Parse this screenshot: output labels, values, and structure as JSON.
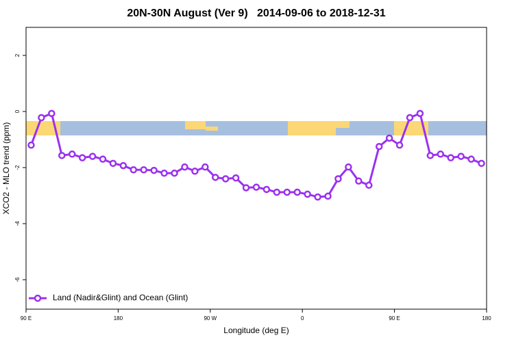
{
  "chart_data": {
    "type": "line",
    "title": "20N-30N August (Ver 9)   2014-09-06 to 2018-12-31",
    "x_label": "Longitude (deg E)",
    "y_label": "XCO2 - MLO trend (ppm)",
    "xlim": [
      90,
      540
    ],
    "ylim": [
      -7.05,
      3.0
    ],
    "xticks": [
      {
        "value": 90,
        "label": "90 E"
      },
      {
        "value": 180,
        "label": "180"
      },
      {
        "value": 270,
        "label": "90 W"
      },
      {
        "value": 360,
        "label": "0"
      },
      {
        "value": 450,
        "label": "90 E"
      },
      {
        "value": 540,
        "label": "180"
      }
    ],
    "yticks": [
      -6,
      -4,
      -2,
      0,
      2
    ],
    "legend": "bottom-left",
    "series": [
      {
        "name": "Land (Nadir&Glint) and Ocean (Glint)",
        "color": "#9b30f0",
        "x": [
          95,
          105,
          115,
          125,
          135,
          145,
          155,
          165,
          175,
          185,
          195,
          205,
          215,
          225,
          235,
          245,
          255,
          265,
          275,
          285,
          295,
          305,
          315,
          325,
          335,
          345,
          355,
          365,
          375,
          385,
          395,
          405,
          415,
          425,
          435,
          445,
          455,
          465,
          475,
          485,
          495,
          505,
          515,
          525,
          535
        ],
        "values": [
          -1.2,
          -0.22,
          -0.07,
          -1.57,
          -1.52,
          -1.65,
          -1.6,
          -1.7,
          -1.85,
          -1.93,
          -2.08,
          -2.08,
          -2.1,
          -2.2,
          -2.2,
          -1.98,
          -2.13,
          -1.98,
          -2.35,
          -2.4,
          -2.37,
          -2.72,
          -2.7,
          -2.78,
          -2.88,
          -2.88,
          -2.88,
          -2.95,
          -3.05,
          -3.02,
          -2.4,
          -1.98,
          -2.48,
          -2.63,
          -1.25,
          -0.95,
          -1.2,
          -0.22,
          -0.07,
          -1.57,
          -1.52,
          -1.65,
          -1.6,
          -1.7,
          -1.85
        ]
      }
    ]
  }
}
